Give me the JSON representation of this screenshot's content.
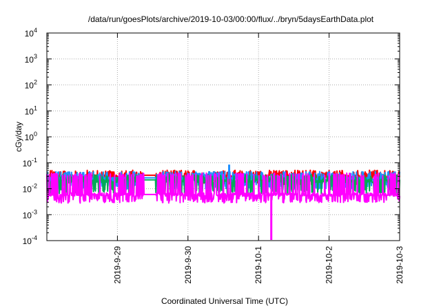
{
  "chart_data": {
    "type": "line",
    "title": "/data/run/goesPlots/archive/2019-10-03/00:00/flux/../bryn/5daysEarthData.plot",
    "xlabel": "Coordinated Universal Time (UTC)",
    "ylabel": "cGy/day",
    "y_scale": "log",
    "ylim": [
      0.0001,
      10000
    ],
    "y_ticks": [
      {
        "value": 0.0001,
        "base": "10",
        "exp": "-4"
      },
      {
        "value": 0.001,
        "base": "10",
        "exp": "-3"
      },
      {
        "value": 0.01,
        "base": "10",
        "exp": "-2"
      },
      {
        "value": 0.1,
        "base": "10",
        "exp": "-1"
      },
      {
        "value": 1,
        "base": "10",
        "exp": "0"
      },
      {
        "value": 10,
        "base": "10",
        "exp": "1"
      },
      {
        "value": 100,
        "base": "10",
        "exp": "2"
      },
      {
        "value": 1000,
        "base": "10",
        "exp": "3"
      },
      {
        "value": 10000,
        "base": "10",
        "exp": "4"
      }
    ],
    "xlim": [
      "2019-09-28 00:00",
      "2019-10-03 00:00"
    ],
    "x_ticks": [
      {
        "value": "2019-09-29 00:00",
        "label": "2019-9-29"
      },
      {
        "value": "2019-09-30 00:00",
        "label": "2019-9-30"
      },
      {
        "value": "2019-10-01 00:00",
        "label": "2019-10-1"
      },
      {
        "value": "2019-10-02 00:00",
        "label": "2019-10-2"
      },
      {
        "value": "2019-10-03 00:00",
        "label": "2019-10-3"
      }
    ],
    "grid": true,
    "series": [
      {
        "color": "#ff0000",
        "base": 0.03,
        "low": 0.018,
        "high": 0.045
      },
      {
        "color": "#1e90ff",
        "base": 0.024,
        "low": 0.012,
        "high": 0.04
      },
      {
        "color": "#00aa55",
        "base": 0.02,
        "low": 0.008,
        "high": 0.03
      },
      {
        "color": "#ff00ff",
        "base": 0.006,
        "low": 0.0035,
        "high": 0.035
      }
    ],
    "gaps": [
      [
        "2019-09-29 09:00",
        "2019-09-29 13:00"
      ]
    ],
    "features": [
      {
        "series": 3,
        "x": "2019-10-01 04:20",
        "y": 0.0001,
        "note": "dropout spike"
      },
      {
        "series": 1,
        "x": "2019-09-30 14:00",
        "y": 0.08,
        "note": "peak"
      }
    ]
  }
}
